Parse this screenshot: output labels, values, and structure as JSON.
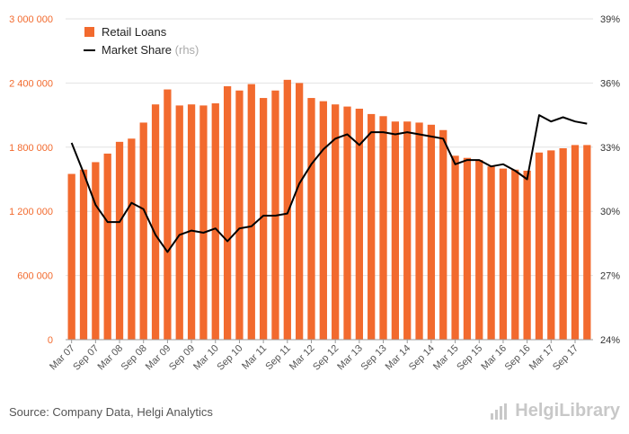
{
  "chart_data": {
    "type": "bar+line",
    "title": "",
    "source": "Source: Company Data, Helgi Analytics",
    "brand": "HelgiLibrary",
    "legend": [
      {
        "label": "Retail Loans",
        "series": "bars"
      },
      {
        "label": "Market Share",
        "suffix": "(rhs)",
        "series": "line"
      }
    ],
    "categories": [
      "Mar 07",
      "Jun 07",
      "Sep 07",
      "Dec 07",
      "Mar 08",
      "Jun 08",
      "Sep 08",
      "Dec 08",
      "Mar 09",
      "Jun 09",
      "Sep 09",
      "Dec 09",
      "Mar 10",
      "Jun 10",
      "Sep 10",
      "Dec 10",
      "Mar 11",
      "Jun 11",
      "Sep 11",
      "Dec 11",
      "Mar 12",
      "Jun 12",
      "Sep 12",
      "Dec 12",
      "Mar 13",
      "Jun 13",
      "Sep 13",
      "Dec 13",
      "Mar 14",
      "Jun 14",
      "Sep 14",
      "Dec 14",
      "Mar 15",
      "Jun 15",
      "Sep 15",
      "Dec 15",
      "Mar 16",
      "Jun 16",
      "Sep 16",
      "Dec 16",
      "Mar 17",
      "Jun 17",
      "Sep 17",
      "Dec 17"
    ],
    "x_tick_labels": [
      "Mar 07",
      "Sep 07",
      "Mar 08",
      "Sep 08",
      "Mar 09",
      "Sep 09",
      "Mar 10",
      "Sep 10",
      "Mar 11",
      "Sep 11",
      "Mar 12",
      "Sep 12",
      "Mar 13",
      "Sep 13",
      "Mar 14",
      "Sep 14",
      "Mar 15",
      "Sep 15",
      "Mar 16",
      "Sep 16",
      "Mar 17",
      "Sep 17"
    ],
    "retail_loans": [
      1550000,
      1590000,
      1660000,
      1740000,
      1850000,
      1880000,
      2030000,
      2200000,
      2340000,
      2190000,
      2200000,
      2190000,
      2210000,
      2370000,
      2330000,
      2390000,
      2260000,
      2330000,
      2430000,
      2400000,
      2260000,
      2230000,
      2200000,
      2180000,
      2160000,
      2110000,
      2090000,
      2040000,
      2040000,
      2030000,
      2010000,
      1960000,
      1720000,
      1700000,
      1680000,
      1620000,
      1600000,
      1590000,
      1580000,
      1750000,
      1770000,
      1790000,
      1820000,
      1820000
    ],
    "market_share": [
      33.2,
      31.8,
      30.3,
      29.5,
      29.5,
      30.4,
      30.1,
      28.9,
      28.1,
      28.9,
      29.1,
      29.0,
      29.2,
      28.6,
      29.2,
      29.3,
      29.8,
      29.8,
      29.9,
      31.3,
      32.2,
      32.9,
      33.4,
      33.6,
      33.1,
      33.7,
      33.7,
      33.6,
      33.7,
      33.6,
      33.5,
      33.4,
      32.2,
      32.4,
      32.4,
      32.1,
      32.2,
      31.9,
      31.5,
      34.5,
      34.2,
      34.4,
      34.2,
      34.1
    ],
    "y_left": {
      "min": 0,
      "max": 3000000,
      "ticks": [
        0,
        600000,
        1200000,
        1800000,
        2400000,
        3000000
      ],
      "tick_labels": [
        "0",
        "600 000",
        "1 200 000",
        "1 800 000",
        "2 400 000",
        "3 000 000"
      ]
    },
    "y_right": {
      "min": 24,
      "max": 39,
      "ticks": [
        24,
        27,
        30,
        33,
        36,
        39
      ],
      "tick_labels": [
        "24%",
        "27%",
        "30%",
        "33%",
        "36%",
        "39%"
      ]
    },
    "colors": {
      "bars": "#f26a2e",
      "line": "#000000",
      "left_axis": "#f26a2e",
      "right_axis": "#333333",
      "grid": "#e2e2e2",
      "rhs_note": "#aaaaaa"
    }
  }
}
